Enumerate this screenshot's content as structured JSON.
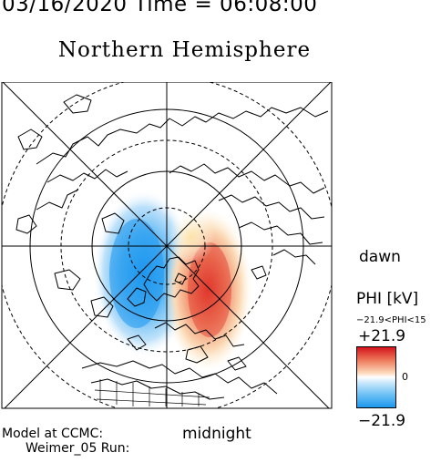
{
  "header": {
    "date_time": "03/16/2020 Time = 06:08:00",
    "title": "Northern Hemisphere"
  },
  "map": {
    "projection": "polar-north",
    "coastlines": true,
    "grid": "magnetic latitude circles and local-time meridians"
  },
  "labels": {
    "dawn": "dawn",
    "midnight": "midnight",
    "model_line1": "Model at CCMC:",
    "model_line2": "Weimer_05  Run:"
  },
  "colorbar": {
    "title": "PHI [kV]",
    "range_text": "−21.9<PHI<15",
    "max_label": "+21.9",
    "zero_label": "0",
    "min_label": "−21.9",
    "colors": {
      "positive": "#d4141c",
      "zero": "#ffffff",
      "negative": "#1e98ee"
    }
  },
  "potential_cells": [
    {
      "polarity": "negative",
      "position": "dusk side",
      "color": "#1e98ee"
    },
    {
      "polarity": "positive",
      "position": "dawn side",
      "color": "#d4141c"
    }
  ]
}
